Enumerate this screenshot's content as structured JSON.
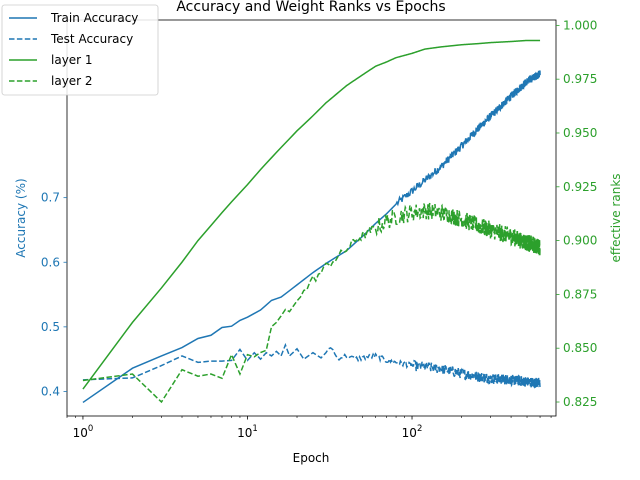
{
  "chart_data": {
    "type": "line",
    "title": "Accuracy and Weight Ranks vs Epochs",
    "xlabel": "Epoch",
    "ylabel_left": "Accuracy (%)",
    "ylabel_right": "effective ranks",
    "x_scale": "log",
    "xlim": [
      0.8,
      750
    ],
    "ylim_left": [
      0.362,
      0.975
    ],
    "ylim_right": [
      0.8185,
      1.0025
    ],
    "x_ticks": [
      {
        "value": 1,
        "base": "10",
        "exp": "0"
      },
      {
        "value": 10,
        "base": "10",
        "exp": "1"
      },
      {
        "value": 100,
        "base": "10",
        "exp": "2"
      }
    ],
    "y_ticks_left": [
      "0.4",
      "0.5",
      "0.6",
      "0.7"
    ],
    "y_ticks_right": [
      "0.825",
      "0.850",
      "0.875",
      "0.900",
      "0.925",
      "0.950",
      "0.975",
      "1.000"
    ],
    "legend_location": "upper-left",
    "colors": {
      "blue": "#1f77b4",
      "green": "#2ca02c"
    },
    "series": [
      {
        "name": "Train Accuracy",
        "axis": "left",
        "color": "#1f77b4",
        "style": "solid",
        "x": [
          1,
          2,
          3,
          4,
          5,
          6,
          7,
          8,
          9,
          10,
          12,
          14,
          16,
          18,
          20,
          25,
          30,
          40,
          50,
          60,
          70,
          80,
          100,
          120,
          150,
          200,
          250,
          300,
          400,
          500,
          600
        ],
        "y": [
          0.383,
          0.436,
          0.455,
          0.468,
          0.482,
          0.487,
          0.499,
          0.501,
          0.51,
          0.515,
          0.526,
          0.541,
          0.546,
          0.556,
          0.565,
          0.584,
          0.598,
          0.618,
          0.64,
          0.66,
          0.675,
          0.69,
          0.71,
          0.727,
          0.748,
          0.78,
          0.806,
          0.826,
          0.857,
          0.88,
          0.892
        ]
      },
      {
        "name": "Test Accuracy",
        "axis": "left",
        "color": "#1f77b4",
        "style": "dashed",
        "x": [
          1,
          2,
          3,
          4,
          5,
          6,
          7,
          8,
          9,
          10,
          11,
          12,
          13,
          14,
          15,
          16,
          17,
          18,
          20,
          22,
          25,
          28,
          30,
          32,
          35,
          40,
          45,
          50,
          60,
          70,
          80,
          100,
          120,
          150,
          200,
          250,
          300,
          400,
          500,
          600
        ],
        "y": [
          0.418,
          0.421,
          0.44,
          0.455,
          0.445,
          0.447,
          0.447,
          0.448,
          0.465,
          0.448,
          0.46,
          0.45,
          0.46,
          0.455,
          0.462,
          0.455,
          0.472,
          0.455,
          0.466,
          0.45,
          0.46,
          0.452,
          0.46,
          0.47,
          0.452,
          0.455,
          0.45,
          0.452,
          0.455,
          0.448,
          0.445,
          0.44,
          0.438,
          0.435,
          0.428,
          0.423,
          0.42,
          0.418,
          0.415,
          0.413
        ]
      },
      {
        "name": "layer 1",
        "axis": "right",
        "color": "#2ca02c",
        "style": "solid",
        "x": [
          1,
          2,
          3,
          4,
          5,
          6,
          7,
          8,
          10,
          12,
          15,
          20,
          25,
          30,
          40,
          50,
          60,
          70,
          80,
          100,
          120,
          150,
          200,
          250,
          300,
          400,
          500,
          600
        ],
        "y": [
          0.831,
          0.862,
          0.878,
          0.89,
          0.9,
          0.907,
          0.913,
          0.918,
          0.926,
          0.933,
          0.941,
          0.951,
          0.958,
          0.964,
          0.972,
          0.977,
          0.981,
          0.983,
          0.985,
          0.987,
          0.989,
          0.99,
          0.991,
          0.9915,
          0.992,
          0.9925,
          0.993,
          0.993
        ]
      },
      {
        "name": "layer 2",
        "axis": "right",
        "color": "#2ca02c",
        "style": "dashed",
        "x": [
          1,
          2,
          3,
          4,
          5,
          6,
          7,
          8,
          9,
          10,
          11,
          12,
          13,
          14,
          15,
          16,
          17,
          18,
          20,
          22,
          25,
          28,
          30,
          35,
          40,
          45,
          50,
          60,
          70,
          80,
          100,
          120,
          150,
          200,
          250,
          300,
          400,
          500,
          600
        ],
        "y": [
          0.835,
          0.838,
          0.825,
          0.84,
          0.837,
          0.838,
          0.836,
          0.847,
          0.838,
          0.847,
          0.846,
          0.848,
          0.849,
          0.86,
          0.862,
          0.865,
          0.868,
          0.867,
          0.872,
          0.876,
          0.882,
          0.885,
          0.888,
          0.892,
          0.896,
          0.9,
          0.902,
          0.906,
          0.909,
          0.911,
          0.913,
          0.914,
          0.913,
          0.91,
          0.907,
          0.905,
          0.902,
          0.899,
          0.897
        ]
      }
    ]
  }
}
